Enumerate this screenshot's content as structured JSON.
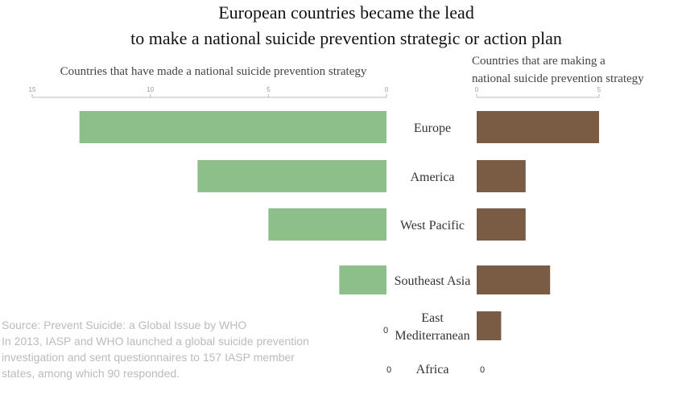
{
  "chart_data": {
    "type": "bar",
    "title_lines": [
      "European countries became the lead",
      "to make a national suicide prevention strategic or action plan"
    ],
    "categories": [
      "Europe",
      "America",
      "West Pacific",
      "Southeast Asia",
      "East Mediterranean",
      "Africa"
    ],
    "category_display_lines": [
      [
        "Europe"
      ],
      [
        "America"
      ],
      [
        "West Pacific"
      ],
      [
        "Southeast Asia"
      ],
      [
        "East",
        "Mediterranean"
      ],
      [
        "Africa"
      ]
    ],
    "series": [
      {
        "name": "Countries that have made a national suicide prevention strategy",
        "title_lines": [
          "Countries that have made a national suicide prevention strategy"
        ],
        "values": [
          13,
          8,
          5,
          2,
          0,
          0
        ],
        "color": "#8dbf8b",
        "xlim": [
          15,
          0
        ],
        "ticks": [
          "15",
          "10",
          "5",
          "0"
        ]
      },
      {
        "name": "Countries that are making a national suicide prevention strategy",
        "title_lines": [
          "Countries that are making a",
          "national suicide prevention strategy"
        ],
        "values": [
          5,
          2,
          2,
          3,
          1,
          0
        ],
        "color": "#7a5c44",
        "xlim": [
          0,
          5
        ],
        "ticks": [
          "0",
          "5"
        ]
      }
    ],
    "zero_labels": {
      "left": [
        "0",
        "0"
      ],
      "right": [
        "0"
      ]
    },
    "source_lines": [
      "Source: Prevent Suicide: a Global Issue by WHO",
      "In 2013, IASP and WHO launched a global suicide prevention",
      "investigation and sent questionnaires to 157 IASP member",
      "states, among which 90 responded."
    ]
  }
}
